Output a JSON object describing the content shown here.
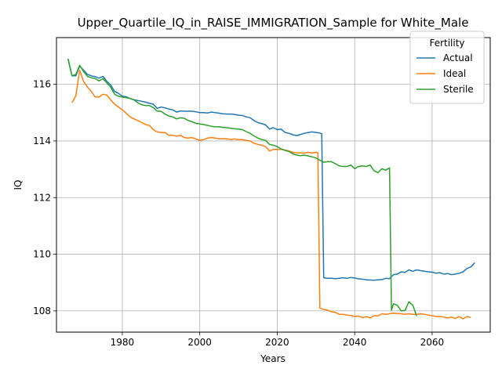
{
  "chart_data": {
    "type": "line",
    "title": "Upper_Quartile_IQ_in_RAISE_IMMIGRATION_Sample for White_Male",
    "xlabel": "Years",
    "ylabel": "IQ",
    "xlim": [
      1963,
      2075
    ],
    "ylim": [
      107.25,
      117.65
    ],
    "xticks": [
      1980,
      2000,
      2020,
      2040,
      2060
    ],
    "yticks": [
      108,
      110,
      112,
      114,
      116
    ],
    "grid": true,
    "legend": {
      "title": "Fertility",
      "position": "top-right"
    },
    "series": [
      {
        "name": "Actual",
        "color": "#1f77b4",
        "points": [
          [
            1966,
            116.9
          ],
          [
            1967,
            116.3
          ],
          [
            1968,
            116.3
          ],
          [
            1969,
            116.65
          ],
          [
            1970,
            116.5
          ],
          [
            1971,
            116.35
          ],
          [
            1972,
            116.3
          ],
          [
            1973,
            116.27
          ],
          [
            1974,
            116.22
          ],
          [
            1975,
            116.28
          ],
          [
            1976,
            116.1
          ],
          [
            1977,
            115.98
          ],
          [
            1978,
            115.75
          ],
          [
            1979,
            115.68
          ],
          [
            1980,
            115.58
          ],
          [
            1981,
            115.56
          ],
          [
            1982,
            115.5
          ],
          [
            1983,
            115.46
          ],
          [
            1984,
            115.43
          ],
          [
            1985,
            115.4
          ],
          [
            1986,
            115.37
          ],
          [
            1987,
            115.33
          ],
          [
            1988,
            115.3
          ],
          [
            1989,
            115.15
          ],
          [
            1990,
            115.2
          ],
          [
            1991,
            115.17
          ],
          [
            1992,
            115.13
          ],
          [
            1993,
            115.1
          ],
          [
            1994,
            115.02
          ],
          [
            1995,
            115.06
          ],
          [
            1996,
            115.05
          ],
          [
            1997,
            115.05
          ],
          [
            1998,
            115.05
          ],
          [
            1999,
            115.03
          ],
          [
            2000,
            115.0
          ],
          [
            2001,
            115.0
          ],
          [
            2002,
            114.99
          ],
          [
            2003,
            115.02
          ],
          [
            2004,
            115.0
          ],
          [
            2005,
            114.98
          ],
          [
            2006,
            114.96
          ],
          [
            2007,
            114.95
          ],
          [
            2008,
            114.95
          ],
          [
            2009,
            114.94
          ],
          [
            2010,
            114.91
          ],
          [
            2011,
            114.9
          ],
          [
            2012,
            114.85
          ],
          [
            2013,
            114.82
          ],
          [
            2014,
            114.72
          ],
          [
            2015,
            114.65
          ],
          [
            2016,
            114.61
          ],
          [
            2017,
            114.57
          ],
          [
            2018,
            114.42
          ],
          [
            2019,
            114.47
          ],
          [
            2020,
            114.4
          ],
          [
            2021,
            114.42
          ],
          [
            2022,
            114.3
          ],
          [
            2023,
            114.27
          ],
          [
            2024,
            114.22
          ],
          [
            2025,
            114.19
          ],
          [
            2026,
            114.23
          ],
          [
            2027,
            114.27
          ],
          [
            2028,
            114.3
          ],
          [
            2029,
            114.32
          ],
          [
            2030,
            114.3
          ],
          [
            2031,
            114.28
          ],
          [
            2031.5,
            114.25
          ],
          [
            2032,
            109.17
          ],
          [
            2033,
            109.15
          ],
          [
            2034,
            109.15
          ],
          [
            2035,
            109.14
          ],
          [
            2036,
            109.15
          ],
          [
            2037,
            109.17
          ],
          [
            2038,
            109.15
          ],
          [
            2039,
            109.18
          ],
          [
            2040,
            109.16
          ],
          [
            2041,
            109.13
          ],
          [
            2042,
            109.12
          ],
          [
            2043,
            109.1
          ],
          [
            2044,
            109.09
          ],
          [
            2045,
            109.08
          ],
          [
            2046,
            109.1
          ],
          [
            2047,
            109.1
          ],
          [
            2048,
            109.15
          ],
          [
            2049,
            109.14
          ],
          [
            2050,
            109.28
          ],
          [
            2051,
            109.3
          ],
          [
            2052,
            109.38
          ],
          [
            2053,
            109.36
          ],
          [
            2054,
            109.45
          ],
          [
            2055,
            109.4
          ],
          [
            2056,
            109.45
          ],
          [
            2057,
            109.42
          ],
          [
            2058,
            109.4
          ],
          [
            2059,
            109.38
          ],
          [
            2060,
            109.37
          ],
          [
            2061,
            109.33
          ],
          [
            2062,
            109.35
          ],
          [
            2063,
            109.3
          ],
          [
            2064,
            109.32
          ],
          [
            2065,
            109.28
          ],
          [
            2066,
            109.3
          ],
          [
            2067,
            109.33
          ],
          [
            2068,
            109.38
          ],
          [
            2069,
            109.5
          ],
          [
            2070,
            109.55
          ],
          [
            2071,
            109.7
          ]
        ]
      },
      {
        "name": "Ideal",
        "color": "#ff7f0e",
        "points": [
          [
            1967,
            115.35
          ],
          [
            1968,
            115.6
          ],
          [
            1969,
            116.5
          ],
          [
            1970,
            116.1
          ],
          [
            1971,
            115.9
          ],
          [
            1972,
            115.75
          ],
          [
            1973,
            115.55
          ],
          [
            1974,
            115.55
          ],
          [
            1975,
            115.65
          ],
          [
            1976,
            115.62
          ],
          [
            1977,
            115.45
          ],
          [
            1978,
            115.3
          ],
          [
            1979,
            115.2
          ],
          [
            1980,
            115.1
          ],
          [
            1981,
            114.98
          ],
          [
            1982,
            114.85
          ],
          [
            1983,
            114.78
          ],
          [
            1984,
            114.72
          ],
          [
            1985,
            114.65
          ],
          [
            1986,
            114.58
          ],
          [
            1987,
            114.55
          ],
          [
            1988,
            114.4
          ],
          [
            1989,
            114.32
          ],
          [
            1990,
            114.3
          ],
          [
            1991,
            114.3
          ],
          [
            1992,
            114.2
          ],
          [
            1993,
            114.2
          ],
          [
            1994,
            114.17
          ],
          [
            1995,
            114.2
          ],
          [
            1996,
            114.12
          ],
          [
            1997,
            114.1
          ],
          [
            1998,
            114.12
          ],
          [
            1999,
            114.07
          ],
          [
            2000,
            114.02
          ],
          [
            2001,
            114.05
          ],
          [
            2002,
            114.1
          ],
          [
            2003,
            114.12
          ],
          [
            2004,
            114.1
          ],
          [
            2005,
            114.08
          ],
          [
            2006,
            114.08
          ],
          [
            2007,
            114.08
          ],
          [
            2008,
            114.05
          ],
          [
            2009,
            114.07
          ],
          [
            2010,
            114.05
          ],
          [
            2011,
            114.05
          ],
          [
            2012,
            114.02
          ],
          [
            2013,
            114.0
          ],
          [
            2014,
            113.92
          ],
          [
            2015,
            113.88
          ],
          [
            2016,
            113.85
          ],
          [
            2017,
            113.8
          ],
          [
            2018,
            113.65
          ],
          [
            2019,
            113.7
          ],
          [
            2020,
            113.7
          ],
          [
            2021,
            113.7
          ],
          [
            2022,
            113.68
          ],
          [
            2023,
            113.65
          ],
          [
            2024,
            113.6
          ],
          [
            2025,
            113.58
          ],
          [
            2026,
            113.58
          ],
          [
            2027,
            113.57
          ],
          [
            2028,
            113.6
          ],
          [
            2029,
            113.57
          ],
          [
            2030,
            113.6
          ],
          [
            2030.5,
            113.58
          ],
          [
            2031,
            108.1
          ],
          [
            2032,
            108.05
          ],
          [
            2033,
            108.03
          ],
          [
            2034,
            107.97
          ],
          [
            2035,
            107.95
          ],
          [
            2036,
            107.88
          ],
          [
            2037,
            107.88
          ],
          [
            2038,
            107.85
          ],
          [
            2039,
            107.84
          ],
          [
            2040,
            107.8
          ],
          [
            2041,
            107.82
          ],
          [
            2042,
            107.76
          ],
          [
            2043,
            107.8
          ],
          [
            2044,
            107.75
          ],
          [
            2045,
            107.83
          ],
          [
            2046,
            107.82
          ],
          [
            2047,
            107.9
          ],
          [
            2048,
            107.88
          ],
          [
            2049,
            107.9
          ],
          [
            2050,
            107.92
          ],
          [
            2051,
            107.9
          ],
          [
            2052,
            107.9
          ],
          [
            2053,
            107.88
          ],
          [
            2054,
            107.9
          ],
          [
            2055,
            107.88
          ],
          [
            2056,
            107.88
          ],
          [
            2057,
            107.9
          ],
          [
            2058,
            107.88
          ],
          [
            2059,
            107.85
          ],
          [
            2060,
            107.83
          ],
          [
            2061,
            107.8
          ],
          [
            2062,
            107.8
          ],
          [
            2063,
            107.78
          ],
          [
            2064,
            107.75
          ],
          [
            2065,
            107.78
          ],
          [
            2066,
            107.73
          ],
          [
            2067,
            107.8
          ],
          [
            2068,
            107.72
          ],
          [
            2069,
            107.8
          ],
          [
            2070,
            107.77
          ]
        ]
      },
      {
        "name": "Sterile",
        "color": "#2ca02c",
        "points": [
          [
            1966,
            116.88
          ],
          [
            1967,
            116.3
          ],
          [
            1968,
            116.35
          ],
          [
            1969,
            116.67
          ],
          [
            1970,
            116.45
          ],
          [
            1971,
            116.28
          ],
          [
            1972,
            116.23
          ],
          [
            1973,
            116.2
          ],
          [
            1974,
            116.12
          ],
          [
            1975,
            116.2
          ],
          [
            1976,
            116.05
          ],
          [
            1977,
            115.9
          ],
          [
            1978,
            115.65
          ],
          [
            1979,
            115.58
          ],
          [
            1980,
            115.55
          ],
          [
            1981,
            115.53
          ],
          [
            1982,
            115.5
          ],
          [
            1983,
            115.45
          ],
          [
            1984,
            115.35
          ],
          [
            1985,
            115.28
          ],
          [
            1986,
            115.25
          ],
          [
            1987,
            115.25
          ],
          [
            1988,
            115.18
          ],
          [
            1989,
            115.05
          ],
          [
            1990,
            115.05
          ],
          [
            1991,
            114.95
          ],
          [
            1992,
            114.88
          ],
          [
            1993,
            114.85
          ],
          [
            1994,
            114.78
          ],
          [
            1995,
            114.82
          ],
          [
            1996,
            114.8
          ],
          [
            1997,
            114.72
          ],
          [
            1998,
            114.68
          ],
          [
            1999,
            114.62
          ],
          [
            2000,
            114.6
          ],
          [
            2001,
            114.58
          ],
          [
            2002,
            114.55
          ],
          [
            2003,
            114.52
          ],
          [
            2004,
            114.5
          ],
          [
            2005,
            114.5
          ],
          [
            2006,
            114.48
          ],
          [
            2007,
            114.47
          ],
          [
            2008,
            114.45
          ],
          [
            2009,
            114.43
          ],
          [
            2010,
            114.42
          ],
          [
            2011,
            114.4
          ],
          [
            2012,
            114.33
          ],
          [
            2013,
            114.27
          ],
          [
            2014,
            114.18
          ],
          [
            2015,
            114.1
          ],
          [
            2016,
            114.05
          ],
          [
            2017,
            114.02
          ],
          [
            2018,
            113.88
          ],
          [
            2019,
            113.85
          ],
          [
            2020,
            113.8
          ],
          [
            2021,
            113.72
          ],
          [
            2022,
            113.67
          ],
          [
            2023,
            113.63
          ],
          [
            2024,
            113.55
          ],
          [
            2025,
            113.5
          ],
          [
            2026,
            113.48
          ],
          [
            2027,
            113.5
          ],
          [
            2028,
            113.47
          ],
          [
            2029,
            113.44
          ],
          [
            2030,
            113.4
          ],
          [
            2031,
            113.32
          ],
          [
            2032,
            113.25
          ],
          [
            2033,
            113.27
          ],
          [
            2034,
            113.27
          ],
          [
            2035,
            113.2
          ],
          [
            2036,
            113.12
          ],
          [
            2037,
            113.1
          ],
          [
            2038,
            113.1
          ],
          [
            2039,
            113.15
          ],
          [
            2040,
            113.02
          ],
          [
            2041,
            113.1
          ],
          [
            2042,
            113.12
          ],
          [
            2043,
            113.1
          ],
          [
            2044,
            113.15
          ],
          [
            2045,
            112.95
          ],
          [
            2046,
            112.88
          ],
          [
            2047,
            113.02
          ],
          [
            2048,
            112.97
          ],
          [
            2049,
            113.05
          ],
          [
            2049.5,
            108.02
          ],
          [
            2050,
            108.25
          ],
          [
            2051,
            108.2
          ],
          [
            2052,
            108.0
          ],
          [
            2053,
            108.02
          ],
          [
            2054,
            108.32
          ],
          [
            2055,
            108.2
          ],
          [
            2056,
            107.82
          ]
        ]
      }
    ]
  }
}
